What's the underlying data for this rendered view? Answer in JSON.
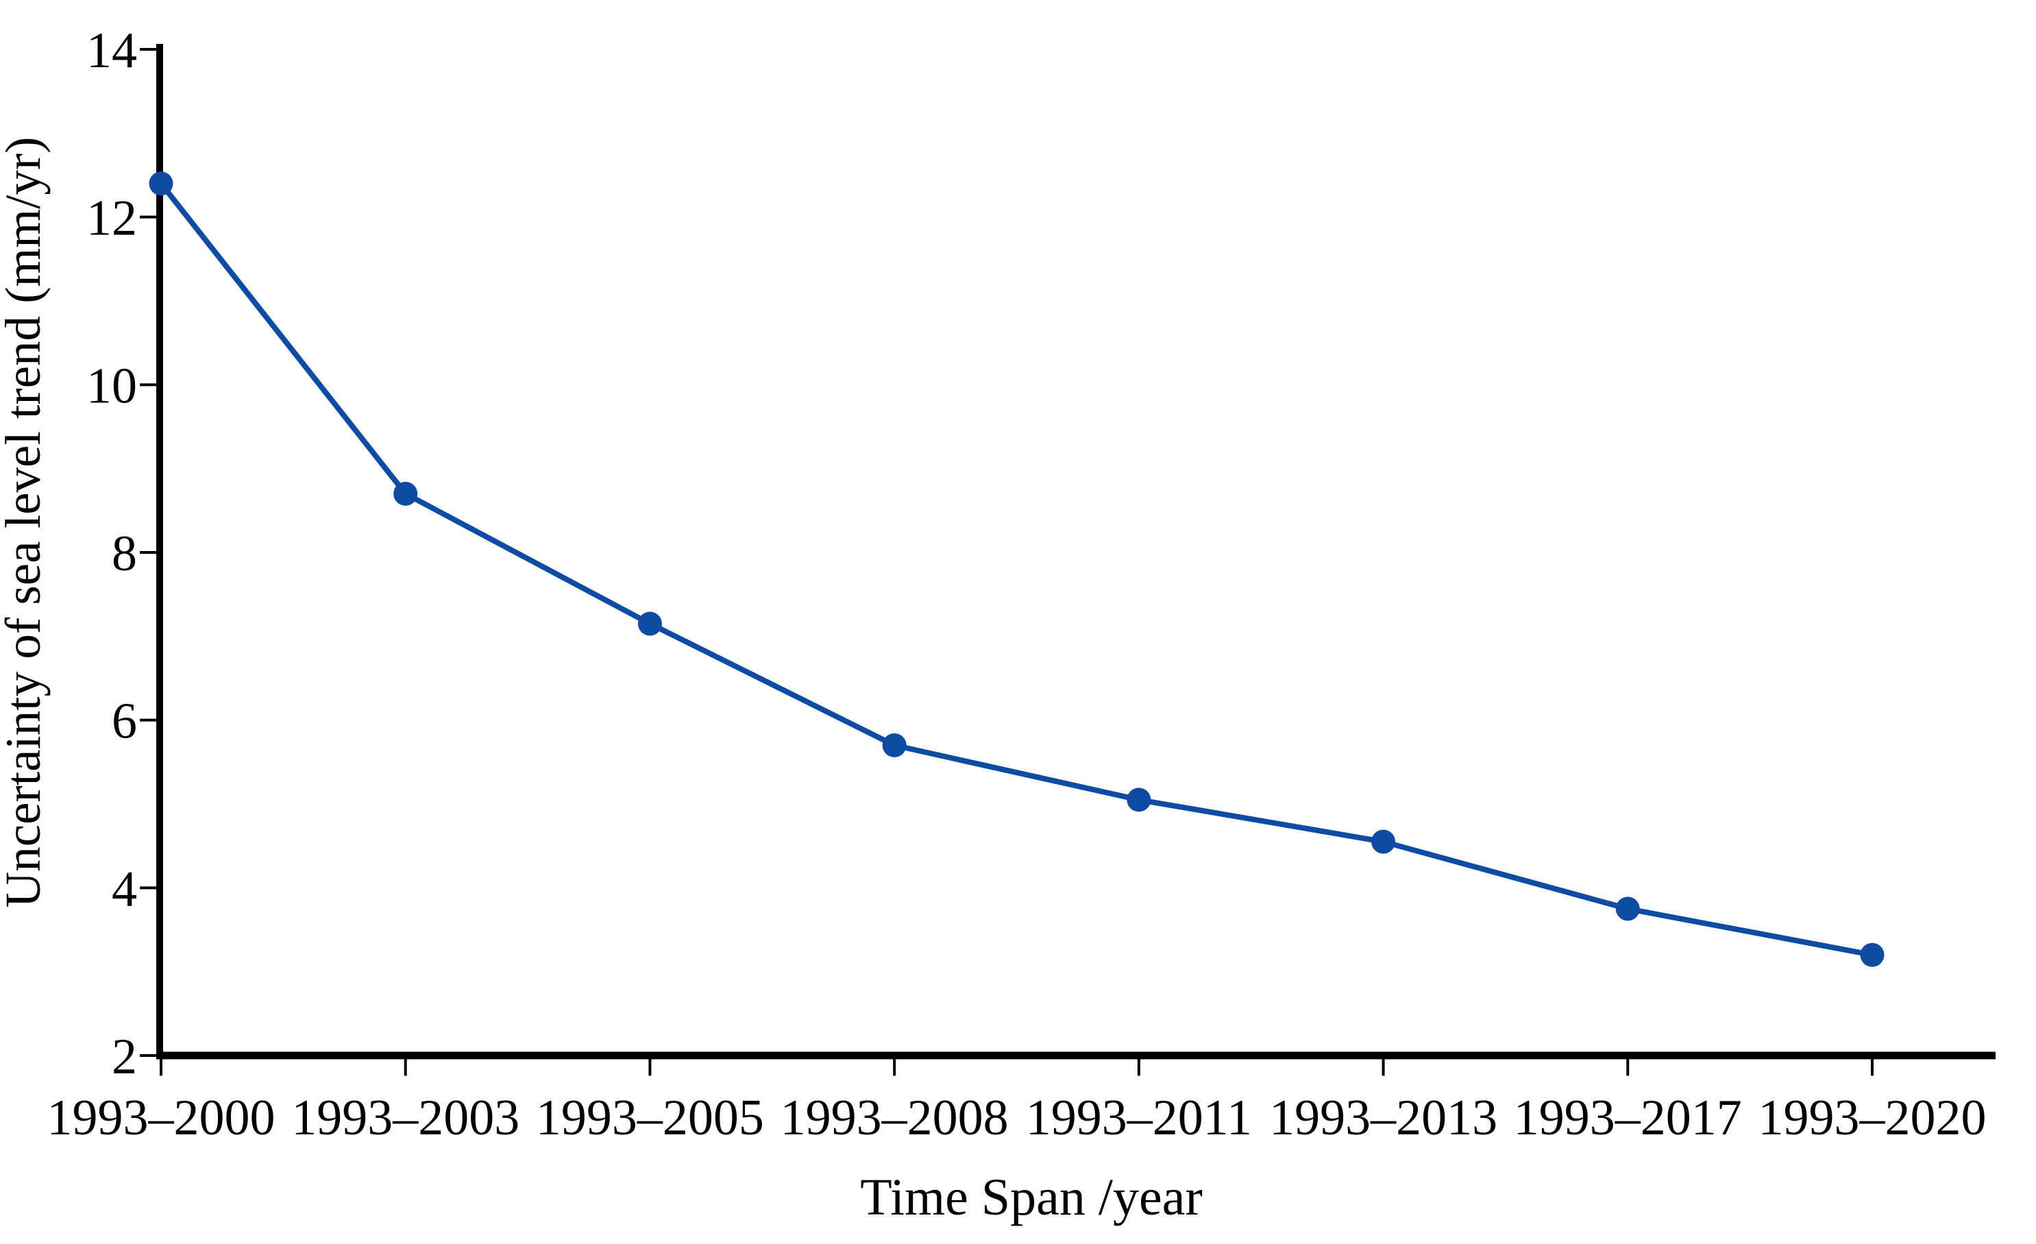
{
  "chart_data": {
    "type": "line",
    "title": "",
    "categories": [
      "1993–2000",
      "1993–2003",
      "1993–2005",
      "1993–2008",
      "1993–2011",
      "1993–2013",
      "1993–2017",
      "1993–2020"
    ],
    "series": [
      {
        "name": "Uncertainty of sea level trend",
        "values": [
          12.4,
          8.7,
          7.15,
          5.7,
          5.05,
          4.55,
          3.75,
          3.2
        ]
      }
    ],
    "xlabel": "Time Span /year",
    "ylabel": "Uncertainty of sea level trend (mm/yr)",
    "ylim": [
      2,
      14
    ],
    "yticks": [
      2,
      4,
      6,
      8,
      10,
      12,
      14
    ],
    "grid": false,
    "legend_position": "none",
    "line_color": "#0e4ba3",
    "marker": "circle",
    "axis_color": "#000000"
  }
}
